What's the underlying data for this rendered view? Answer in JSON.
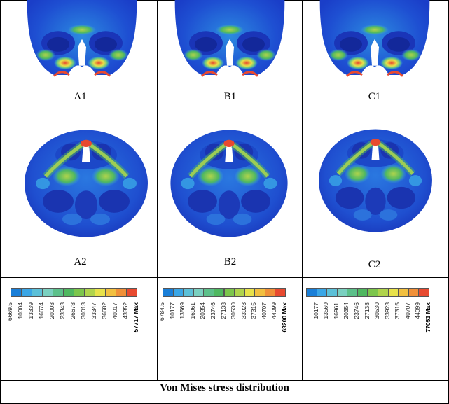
{
  "figure": {
    "labels": [
      "A1",
      "B1",
      "C1",
      "A2",
      "B2",
      "C2"
    ],
    "caption": "Von Mises stress distribution"
  },
  "legends": [
    {
      "ticks": [
        "6669.5",
        "10004",
        "13339",
        "16674",
        "20008",
        "23343",
        "26678",
        "30013",
        "33347",
        "36682",
        "40017",
        "43352"
      ],
      "max": "57717 Max"
    },
    {
      "ticks": [
        "6784.5",
        "10177",
        "13569",
        "16961",
        "20354",
        "23746",
        "27138",
        "30530",
        "33923",
        "37315",
        "40707",
        "44099"
      ],
      "max": "63200 Max"
    },
    {
      "ticks": [
        "10177",
        "13569",
        "16961",
        "20354",
        "23746",
        "27138",
        "30530",
        "33923",
        "37315",
        "40707",
        "44099"
      ],
      "max": "77053 Max"
    }
  ],
  "colors": {
    "scale": [
      "#1a7fd8",
      "#3aa6e6",
      "#5cc0d8",
      "#7ad0c0",
      "#5cc08a",
      "#4fb860",
      "#7cc64c",
      "#b0d44c",
      "#e8e24a",
      "#f2c040",
      "#f09038",
      "#e84a30"
    ],
    "skull_base": "#1f4fd0",
    "grid": "#000000"
  }
}
